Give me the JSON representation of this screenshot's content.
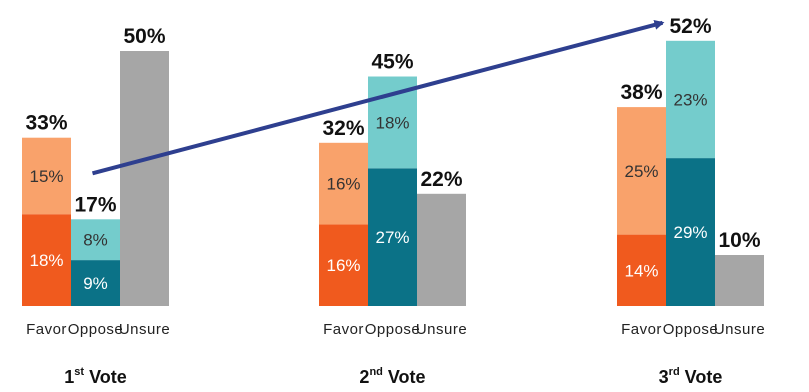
{
  "chart_data": {
    "type": "bar",
    "stacked": true,
    "title": "",
    "xlabel": "",
    "ylabel": "",
    "ylim": [
      0,
      55
    ],
    "grid": false,
    "legend": "none",
    "groups": [
      {
        "title": {
          "base": "1",
          "sup": "st",
          "rest": " Vote"
        },
        "bars": [
          {
            "category": "Favor",
            "total": 33,
            "total_label": "33%",
            "segments": [
              {
                "value": 18,
                "label": "18%",
                "color": "#F05A1E",
                "text_color": "#ffffff"
              },
              {
                "value": 15,
                "label": "15%",
                "color": "#F9A26B",
                "text_color": "#333333"
              }
            ]
          },
          {
            "category": "Oppose",
            "total": 17,
            "total_label": "17%",
            "segments": [
              {
                "value": 9,
                "label": "9%",
                "color": "#0B7287",
                "text_color": "#ffffff"
              },
              {
                "value": 8,
                "label": "8%",
                "color": "#74CCCC",
                "text_color": "#333333"
              }
            ]
          },
          {
            "category": "Unsure",
            "total": 50,
            "total_label": "50%",
            "segments": [
              {
                "value": 50,
                "label": "",
                "color": "#A6A6A6",
                "text_color": "#333333"
              }
            ]
          }
        ]
      },
      {
        "title": {
          "base": "2",
          "sup": "nd",
          "rest": " Vote"
        },
        "bars": [
          {
            "category": "Favor",
            "total": 32,
            "total_label": "32%",
            "segments": [
              {
                "value": 16,
                "label": "16%",
                "color": "#F05A1E",
                "text_color": "#ffffff"
              },
              {
                "value": 16,
                "label": "16%",
                "color": "#F9A26B",
                "text_color": "#333333"
              }
            ]
          },
          {
            "category": "Oppose",
            "total": 45,
            "total_label": "45%",
            "segments": [
              {
                "value": 27,
                "label": "27%",
                "color": "#0B7287",
                "text_color": "#ffffff"
              },
              {
                "value": 18,
                "label": "18%",
                "color": "#74CCCC",
                "text_color": "#333333"
              }
            ]
          },
          {
            "category": "Unsure",
            "total": 22,
            "total_label": "22%",
            "segments": [
              {
                "value": 22,
                "label": "",
                "color": "#A6A6A6",
                "text_color": "#333333"
              }
            ]
          }
        ]
      },
      {
        "title": {
          "base": "3",
          "sup": "rd",
          "rest": " Vote"
        },
        "bars": [
          {
            "category": "Favor",
            "total": 38,
            "total_label": "38%",
            "segments": [
              {
                "value": 14,
                "label": "14%",
                "color": "#F05A1E",
                "text_color": "#ffffff"
              },
              {
                "value": 25,
                "label": "25%",
                "color": "#F9A26B",
                "text_color": "#333333"
              }
            ]
          },
          {
            "category": "Oppose",
            "total": 52,
            "total_label": "52%",
            "segments": [
              {
                "value": 29,
                "label": "29%",
                "color": "#0B7287",
                "text_color": "#ffffff"
              },
              {
                "value": 23,
                "label": "23%",
                "color": "#74CCCC",
                "text_color": "#333333"
              }
            ]
          },
          {
            "category": "Unsure",
            "total": 10,
            "total_label": "10%",
            "segments": [
              {
                "value": 10,
                "label": "",
                "color": "#A6A6A6",
                "text_color": "#333333"
              }
            ]
          }
        ]
      }
    ],
    "trend_arrow": {
      "from": {
        "group": 0,
        "category": "Oppose",
        "value": 17
      },
      "to": {
        "group": 2,
        "category": "Oppose",
        "value": 52
      },
      "color": "#2E3F8F"
    }
  }
}
